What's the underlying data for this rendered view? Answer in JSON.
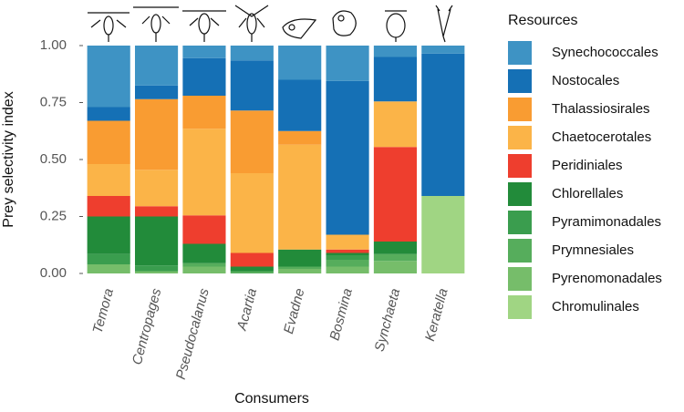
{
  "chart_data": {
    "type": "bar",
    "stacked": true,
    "y_label": "Prey selectivity index",
    "x_label": "Consumers",
    "legend_title": "Resources",
    "categories": [
      "Temora",
      "Centropages",
      "Pseudocalanus",
      "Acartia",
      "Evadne",
      "Bosmina",
      "Synchaeta",
      "Keratella"
    ],
    "ylim": [
      0,
      1
    ],
    "yticks": [
      {
        "value": 0,
        "label": "0.00"
      },
      {
        "value": 0.25,
        "label": "0.25"
      },
      {
        "value": 0.5,
        "label": "0.50"
      },
      {
        "value": 0.75,
        "label": "0.75"
      },
      {
        "value": 1,
        "label": "1.00"
      }
    ],
    "legend_position": "right",
    "series": [
      {
        "name": "Synechococcales",
        "color": "#3e93c4",
        "values": [
          0.27,
          0.175,
          0.055,
          0.065,
          0.15,
          0.155,
          0.05,
          0.035
        ]
      },
      {
        "name": "Nostocales",
        "color": "#1570b5",
        "values": [
          0.06,
          0.06,
          0.165,
          0.22,
          0.225,
          0.675,
          0.195,
          0.625
        ]
      },
      {
        "name": "Thalassiosirales",
        "color": "#f99c32",
        "values": [
          0.19,
          0.31,
          0.145,
          0.275,
          0.06,
          0,
          0,
          0
        ]
      },
      {
        "name": "Chaetocerotales",
        "color": "#fbb448",
        "values": [
          0.14,
          0.16,
          0.38,
          0.35,
          0.46,
          0.065,
          0.2,
          0
        ]
      },
      {
        "name": "Peridiniales",
        "color": "#ee3e2e",
        "values": [
          0.09,
          0.045,
          0.125,
          0.06,
          0,
          0.015,
          0.415,
          0
        ]
      },
      {
        "name": "Chlorellales",
        "color": "#228b3a",
        "values": [
          0.165,
          0.215,
          0.085,
          0.02,
          0.075,
          0.01,
          0.055,
          0
        ]
      },
      {
        "name": "Pyramimonadales",
        "color": "#3a9d4e",
        "values": [
          0.045,
          0.025,
          0,
          0,
          0,
          0.02,
          0,
          0
        ]
      },
      {
        "name": "Prymnesiales",
        "color": "#56ad5c",
        "values": [
          0,
          0,
          0.015,
          0.01,
          0.01,
          0.03,
          0.03,
          0
        ]
      },
      {
        "name": "Pyrenomonadales",
        "color": "#76bd6a",
        "values": [
          0.04,
          0.01,
          0.03,
          0,
          0.02,
          0.03,
          0.055,
          0
        ]
      },
      {
        "name": "Chromulinales",
        "color": "#a0d583",
        "values": [
          0,
          0,
          0,
          0,
          0,
          0,
          0,
          0.34
        ]
      }
    ]
  }
}
